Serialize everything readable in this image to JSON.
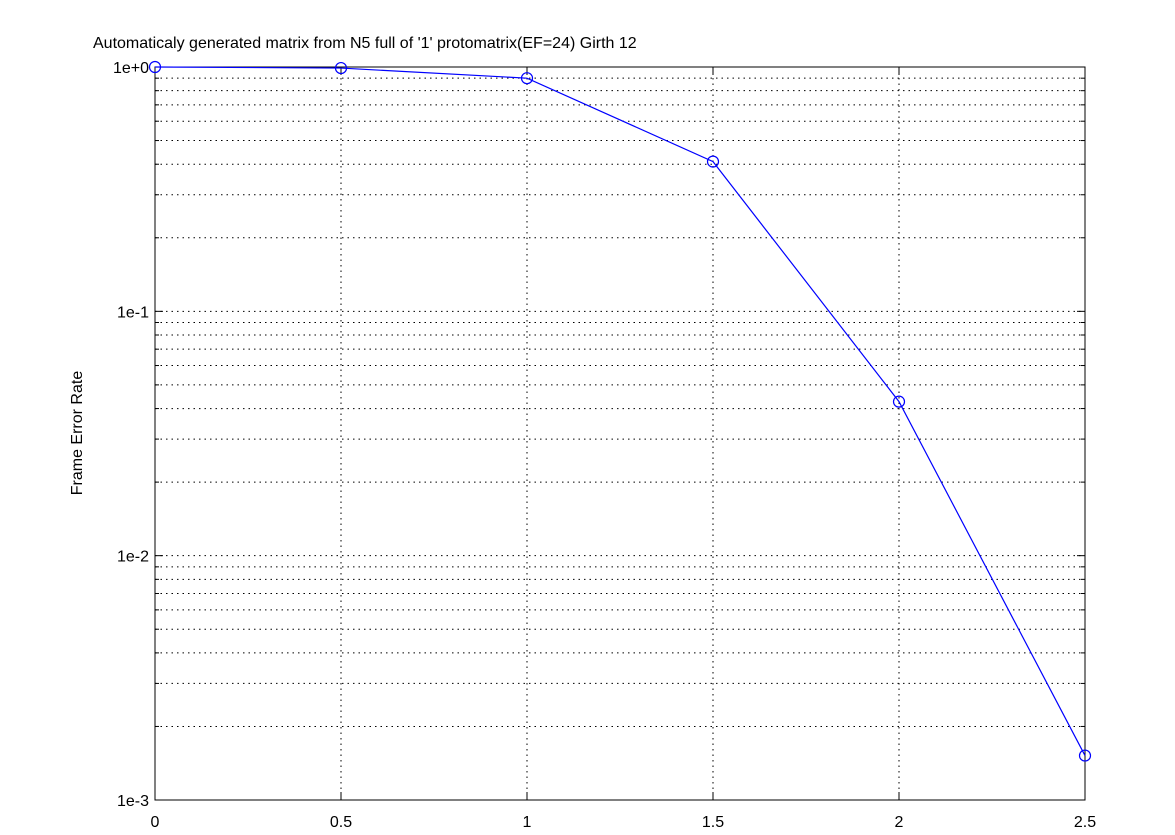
{
  "chart_data": {
    "type": "line",
    "title": "Automaticaly generated matrix from N5 full of '1' protomatrix(EF=24) Girth 12",
    "xlabel": "",
    "ylabel": "Frame Error Rate",
    "xlim": [
      0,
      2.5
    ],
    "ylim": [
      0.001,
      1
    ],
    "yscale": "log",
    "grid": true,
    "x_ticks": [
      "0",
      "0.5",
      "1",
      "1.5",
      "2",
      "2.5"
    ],
    "y_ticks": [
      "1e-3",
      "1e-2",
      "1e-1",
      "1e+0"
    ],
    "series": [
      {
        "x": [
          0,
          0.5,
          1,
          1.5,
          2,
          2.5
        ],
        "y": [
          1.0,
          0.99,
          0.9,
          0.41,
          0.0427,
          0.00152
        ],
        "color": "#0000ff",
        "marker": "circle"
      }
    ]
  }
}
